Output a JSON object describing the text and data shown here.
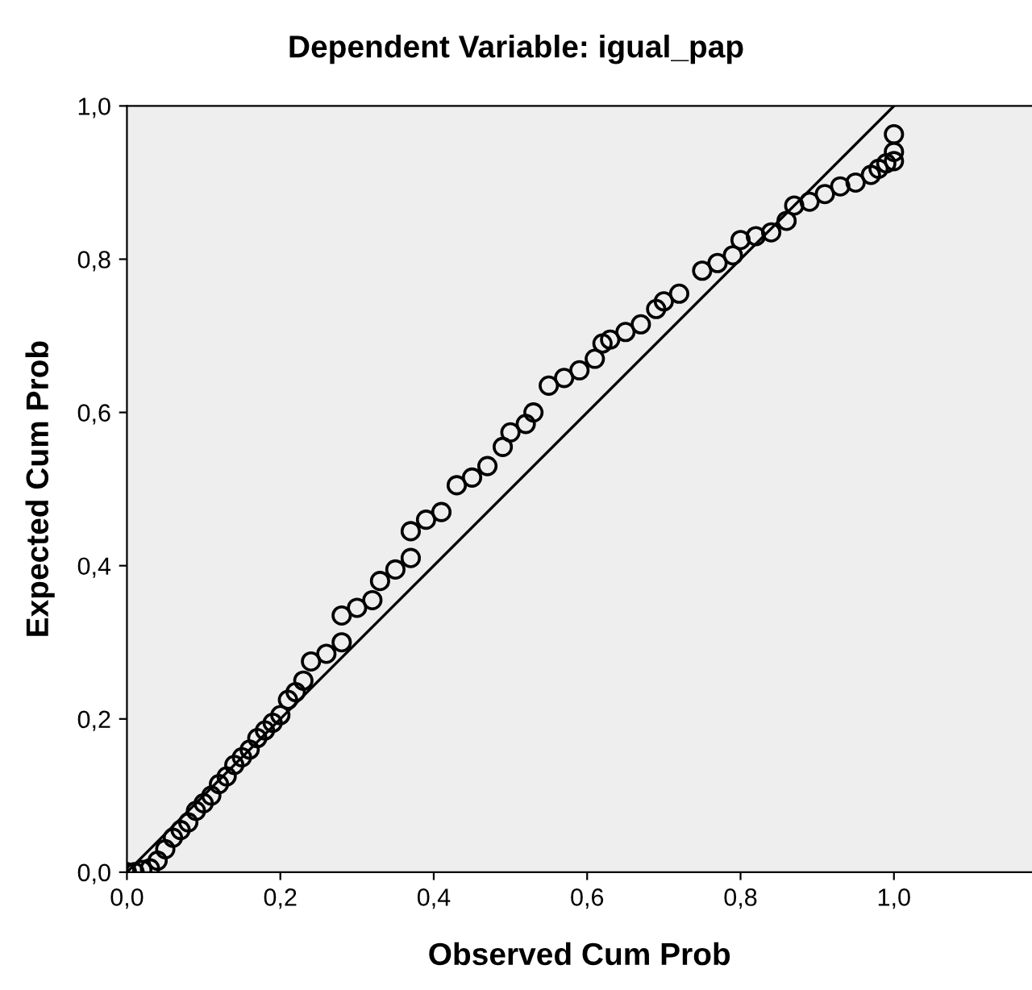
{
  "chart_data": {
    "type": "scatter",
    "title": "Dependent Variable: igual_pap",
    "xlabel": "Observed Cum Prob",
    "ylabel": "Expected Cum Prob",
    "xlim": [
      0,
      1.18
    ],
    "ylim": [
      0,
      1
    ],
    "xticks": [
      {
        "value": 0,
        "label": "0,0"
      },
      {
        "value": 0.2,
        "label": "0,2"
      },
      {
        "value": 0.4,
        "label": "0,4"
      },
      {
        "value": 0.6,
        "label": "0,6"
      },
      {
        "value": 0.8,
        "label": "0,8"
      },
      {
        "value": 1,
        "label": "1,0"
      }
    ],
    "yticks": [
      {
        "value": 0,
        "label": "0,0"
      },
      {
        "value": 0.2,
        "label": "0,2"
      },
      {
        "value": 0.4,
        "label": "0,4"
      },
      {
        "value": 0.6,
        "label": "0,6"
      },
      {
        "value": 0.8,
        "label": "0,8"
      },
      {
        "value": 1,
        "label": "1,0"
      }
    ],
    "grid": false,
    "legend": false,
    "series": [
      {
        "marker": "circle",
        "color": "#000000",
        "x": [
          0.0,
          0.01,
          0.02,
          0.03,
          0.04,
          0.05,
          0.06,
          0.07,
          0.08,
          0.09,
          0.1,
          0.11,
          0.12,
          0.13,
          0.14,
          0.15,
          0.16,
          0.17,
          0.18,
          0.19,
          0.2,
          0.21,
          0.22,
          0.23,
          0.24,
          0.26,
          0.28,
          0.28,
          0.3,
          0.32,
          0.33,
          0.35,
          0.37,
          0.37,
          0.39,
          0.41,
          0.43,
          0.45,
          0.47,
          0.49,
          0.5,
          0.52,
          0.53,
          0.55,
          0.57,
          0.59,
          0.61,
          0.62,
          0.63,
          0.65,
          0.67,
          0.69,
          0.7,
          0.72,
          0.75,
          0.77,
          0.79,
          0.8,
          0.82,
          0.84,
          0.86,
          0.87,
          0.89,
          0.91,
          0.93,
          0.95,
          0.97,
          0.98,
          0.99,
          1.0,
          1.0,
          1.0
        ],
        "values": [
          0.0,
          0.0,
          0.003,
          0.005,
          0.015,
          0.03,
          0.045,
          0.055,
          0.065,
          0.08,
          0.09,
          0.1,
          0.115,
          0.125,
          0.14,
          0.15,
          0.16,
          0.175,
          0.185,
          0.195,
          0.205,
          0.225,
          0.235,
          0.25,
          0.275,
          0.285,
          0.3,
          0.335,
          0.345,
          0.355,
          0.38,
          0.395,
          0.41,
          0.445,
          0.46,
          0.47,
          0.505,
          0.515,
          0.53,
          0.555,
          0.574,
          0.585,
          0.6,
          0.635,
          0.645,
          0.655,
          0.67,
          0.69,
          0.695,
          0.705,
          0.715,
          0.735,
          0.745,
          0.755,
          0.785,
          0.795,
          0.805,
          0.825,
          0.83,
          0.835,
          0.85,
          0.87,
          0.875,
          0.885,
          0.895,
          0.9,
          0.91,
          0.918,
          0.925,
          0.928,
          0.94,
          0.963
        ]
      },
      {
        "type": "line",
        "color": "#000000",
        "x": [
          0,
          1
        ],
        "values": [
          0,
          1
        ]
      }
    ]
  }
}
